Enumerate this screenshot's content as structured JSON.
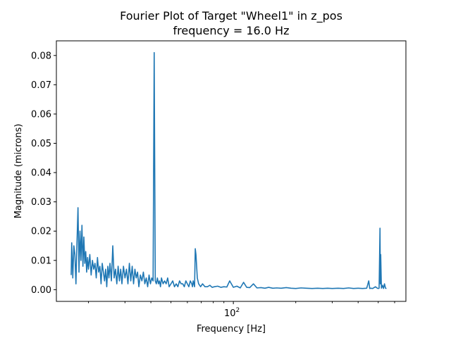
{
  "chart_data": {
    "type": "line",
    "title": "Fourier Plot of Target \"Wheel1\" in z_pos",
    "subtitle": "frequency = 16.0 Hz",
    "xlabel": "Frequency [Hz]",
    "ylabel": "Magnitude (microns)",
    "x_scale": "log",
    "xlim": [
      14.0,
      680.0
    ],
    "ylim": [
      -0.004,
      0.085
    ],
    "x_major_ticks": [
      {
        "value": 100,
        "label": "10",
        "exp": "2"
      }
    ],
    "x_minor_ticks": [
      20,
      30,
      40,
      50,
      60,
      70,
      80,
      90,
      200,
      300,
      400,
      500,
      600
    ],
    "y_ticks": [
      0.0,
      0.01,
      0.02,
      0.03,
      0.04,
      0.05,
      0.06,
      0.07,
      0.08
    ],
    "y_tick_labels": [
      "0.00",
      "0.01",
      "0.02",
      "0.03",
      "0.04",
      "0.05",
      "0.06",
      "0.07",
      "0.08"
    ],
    "grid": false,
    "line_color": "#1f77b4",
    "series": [
      {
        "x": [
          16.5,
          16.6,
          16.8,
          17.0,
          17.2,
          17.4,
          17.6,
          17.8,
          18.0,
          18.2,
          18.4,
          18.6,
          18.8,
          19.0,
          19.2,
          19.4,
          19.6,
          19.8,
          20.0,
          20.3,
          20.6,
          20.9,
          21.2,
          21.5,
          21.8,
          22.1,
          22.4,
          22.7,
          23.0,
          23.3,
          23.6,
          23.9,
          24.2,
          24.5,
          24.8,
          25.1,
          25.4,
          25.8,
          26.2,
          26.6,
          27.0,
          27.4,
          27.8,
          28.2,
          28.6,
          29.0,
          29.5,
          30.0,
          30.5,
          31.0,
          31.5,
          32.0,
          32.5,
          33.0,
          33.5,
          34.0,
          34.5,
          35.0,
          35.6,
          36.2,
          36.8,
          37.4,
          38.0,
          38.6,
          39.2,
          39.8,
          40.4,
          41.0,
          41.5,
          42.0,
          42.5,
          43.0,
          43.5,
          44.0,
          44.5,
          45.0,
          45.8,
          46.6,
          47.4,
          48.2,
          49.0,
          50.0,
          51.0,
          52.0,
          53.0,
          54.0,
          55.0,
          56.0,
          57.0,
          58.0,
          59.0,
          60.0,
          61.0,
          62.0,
          63.0,
          63.5,
          64.0,
          64.5,
          65.0,
          65.5,
          66.0,
          67.0,
          68.0,
          69.5,
          71.0,
          73.0,
          75.0,
          77.0,
          79.0,
          81.0,
          84.0,
          87.0,
          90.0,
          93.0,
          96.0,
          100.0,
          104.0,
          108.0,
          112.0,
          116.0,
          120.0,
          125.0,
          130.0,
          136.0,
          142.0,
          148.0,
          155.0,
          162.0,
          170.0,
          180.0,
          190.0,
          200.0,
          212.0,
          225.0,
          240.0,
          255.0,
          270.0,
          285.0,
          300.0,
          320.0,
          340.0,
          360.0,
          380.0,
          400.0,
          420.0,
          440.0,
          450.0,
          455.0,
          460.0,
          470.0,
          485.0,
          495.0,
          500.0,
          505.0,
          510.0,
          512.0,
          514.0,
          518.0,
          524.0,
          530.0,
          536.0,
          542.0,
          548.0
        ],
        "y": [
          0.005,
          0.016,
          0.004,
          0.015,
          0.012,
          0.002,
          0.016,
          0.028,
          0.006,
          0.02,
          0.01,
          0.022,
          0.008,
          0.018,
          0.009,
          0.013,
          0.006,
          0.011,
          0.007,
          0.012,
          0.005,
          0.01,
          0.007,
          0.009,
          0.004,
          0.011,
          0.006,
          0.008,
          0.002,
          0.009,
          0.006,
          0.003,
          0.007,
          0.001,
          0.008,
          0.004,
          0.009,
          0.003,
          0.015,
          0.004,
          0.007,
          0.002,
          0.008,
          0.003,
          0.007,
          0.002,
          0.008,
          0.004,
          0.007,
          0.002,
          0.009,
          0.003,
          0.008,
          0.002,
          0.007,
          0.004,
          0.006,
          0.001,
          0.005,
          0.003,
          0.006,
          0.002,
          0.004,
          0.001,
          0.005,
          0.002,
          0.004,
          0.003,
          0.081,
          0.003,
          0.002,
          0.004,
          0.002,
          0.003,
          0.001,
          0.004,
          0.002,
          0.003,
          0.002,
          0.004,
          0.001,
          0.002,
          0.003,
          0.001,
          0.002,
          0.001,
          0.003,
          0.002,
          0.002,
          0.001,
          0.003,
          0.002,
          0.001,
          0.003,
          0.002,
          0.001,
          0.003,
          0.002,
          0.001,
          0.014,
          0.012,
          0.004,
          0.002,
          0.001,
          0.002,
          0.001,
          0.001,
          0.0015,
          0.0008,
          0.001,
          0.0012,
          0.0008,
          0.001,
          0.0009,
          0.003,
          0.0008,
          0.0012,
          0.0006,
          0.0025,
          0.0008,
          0.0007,
          0.002,
          0.0006,
          0.0007,
          0.0005,
          0.0008,
          0.0005,
          0.0006,
          0.0005,
          0.0007,
          0.0005,
          0.0004,
          0.0006,
          0.0005,
          0.0004,
          0.0005,
          0.0004,
          0.0005,
          0.0004,
          0.0005,
          0.0004,
          0.0006,
          0.0004,
          0.0005,
          0.0004,
          0.0005,
          0.003,
          0.0004,
          0.0005,
          0.0004,
          0.001,
          0.0005,
          0.0004,
          0.0005,
          0.021,
          0.002,
          0.012,
          0.0005,
          0.0015,
          0.0004,
          0.002,
          0.0005,
          0.0004
        ]
      }
    ]
  }
}
